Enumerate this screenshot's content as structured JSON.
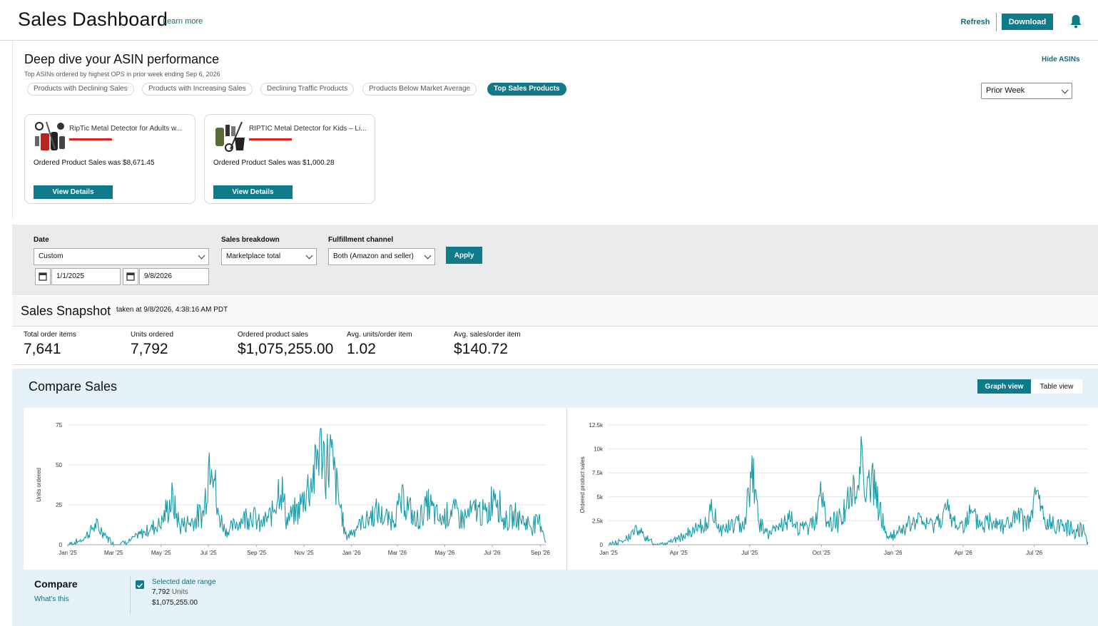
{
  "header": {
    "title": "Sales Dashboard",
    "learn_more": "Learn more",
    "refresh": "Refresh",
    "download": "Download",
    "bell_icon": "bell-icon"
  },
  "asin_panel": {
    "title": "Deep dive your ASIN performance",
    "subtitle": "Top ASINs ordered by highest OPS in prior week ending Sep 6, 2026",
    "hide_asins": "Hide ASINs",
    "tabs": [
      {
        "label": "Products with Declining Sales",
        "active": false
      },
      {
        "label": "Products with Increasing Sales",
        "active": false
      },
      {
        "label": "Declining Traffic Products",
        "active": false
      },
      {
        "label": "Products Below Market Average",
        "active": false
      },
      {
        "label": "Top Sales Products",
        "active": true
      }
    ],
    "period_select": "Prior Week",
    "cards": [
      {
        "name": "RipTic Metal Detector for Adults w...",
        "sales": "Ordered Product Sales was $8,671.45",
        "button": "View Details"
      },
      {
        "name": "RIPTIC Metal Detector for Kids – Li...",
        "sales": "Ordered Product Sales was $1,000.28",
        "button": "View Details"
      }
    ]
  },
  "filters": {
    "date_label": "Date",
    "date_value": "Custom",
    "start_date": "1/1/2025",
    "end_date": "9/8/2026",
    "breakdown_label": "Sales breakdown",
    "breakdown_value": "Marketplace total",
    "channel_label": "Fulfillment channel",
    "channel_value": "Both (Amazon and seller)",
    "apply": "Apply"
  },
  "snapshot": {
    "title": "Sales Snapshot",
    "taken_at": "taken at 9/8/2026, 4:38:16 AM PDT",
    "metrics": [
      {
        "label": "Total order items",
        "value": "7,641"
      },
      {
        "label": "Units ordered",
        "value": "7,792"
      },
      {
        "label": "Ordered product sales",
        "value": "$1,075,255.00"
      },
      {
        "label": "Avg. units/order item",
        "value": "1.02"
      },
      {
        "label": "Avg. sales/order item",
        "value": "$140.72"
      }
    ]
  },
  "compare": {
    "title": "Compare Sales",
    "graph_view": "Graph view",
    "table_view": "Table view",
    "compare_label": "Compare",
    "whats_this": "What's this",
    "range_label": "Selected date range",
    "range_units_value": "7,792",
    "range_units_suffix": "Units",
    "range_sales": "$1,075,255.00"
  },
  "accent_color": "#0f7a8a",
  "series_color": "#1a9ba8",
  "chart_data": [
    {
      "type": "line",
      "title": "",
      "ylabel": "Units ordered",
      "ylim": [
        0,
        75
      ],
      "yticks": [
        0,
        25,
        50,
        75
      ],
      "xticks": [
        "Jan '25",
        "Mar '25",
        "May '25",
        "Jul '25",
        "Sep '25",
        "Nov '25",
        "Jan '26",
        "Mar '26",
        "May '26",
        "Jul '26",
        "Sep '26"
      ],
      "x_range": [
        "2025-01-01",
        "2026-09-08"
      ],
      "approx_points": [
        [
          "2025-01-01",
          0
        ],
        [
          "2025-01-20",
          3
        ],
        [
          "2025-02-05",
          12
        ],
        [
          "2025-02-15",
          8
        ],
        [
          "2025-03-01",
          0
        ],
        [
          "2025-03-20",
          2
        ],
        [
          "2025-04-10",
          8
        ],
        [
          "2025-05-01",
          14
        ],
        [
          "2025-05-15",
          28
        ],
        [
          "2025-05-25",
          12
        ],
        [
          "2025-06-10",
          15
        ],
        [
          "2025-06-25",
          20
        ],
        [
          "2025-07-05",
          70
        ],
        [
          "2025-07-12",
          20
        ],
        [
          "2025-07-25",
          8
        ],
        [
          "2025-08-10",
          15
        ],
        [
          "2025-08-25",
          20
        ],
        [
          "2025-09-05",
          12
        ],
        [
          "2025-09-20",
          18
        ],
        [
          "2025-10-01",
          40
        ],
        [
          "2025-10-10",
          15
        ],
        [
          "2025-10-25",
          22
        ],
        [
          "2025-11-05",
          35
        ],
        [
          "2025-11-15",
          45
        ],
        [
          "2025-11-22",
          70
        ],
        [
          "2025-11-28",
          50
        ],
        [
          "2025-12-05",
          55
        ],
        [
          "2025-12-15",
          30
        ],
        [
          "2025-12-25",
          5
        ],
        [
          "2026-01-10",
          12
        ],
        [
          "2026-02-01",
          20
        ],
        [
          "2026-02-20",
          15
        ],
        [
          "2026-03-10",
          28
        ],
        [
          "2026-03-25",
          14
        ],
        [
          "2026-04-10",
          25
        ],
        [
          "2026-04-25",
          15
        ],
        [
          "2026-05-10",
          22
        ],
        [
          "2026-05-25",
          16
        ],
        [
          "2026-06-10",
          22
        ],
        [
          "2026-06-25",
          18
        ],
        [
          "2026-07-05",
          37
        ],
        [
          "2026-07-15",
          15
        ],
        [
          "2026-08-01",
          18
        ],
        [
          "2026-08-20",
          12
        ],
        [
          "2026-09-01",
          15
        ],
        [
          "2026-09-08",
          2
        ]
      ]
    },
    {
      "type": "line",
      "title": "",
      "ylabel": "Ordered product sales",
      "ylim": [
        0,
        12500
      ],
      "yticks": [
        "0",
        "2.5k",
        "5k",
        "7.5k",
        "10k",
        "12.5k"
      ],
      "xticks": [
        "Jan '25",
        "Apr '25",
        "Jul '25",
        "Oct '25",
        "Jan '26",
        "Apr '26",
        "Jul '26"
      ],
      "x_range": [
        "2025-01-01",
        "2026-09-08"
      ],
      "approx_points": [
        [
          "2025-01-01",
          0
        ],
        [
          "2025-01-20",
          400
        ],
        [
          "2025-02-05",
          1500
        ],
        [
          "2025-02-15",
          1000
        ],
        [
          "2025-03-01",
          0
        ],
        [
          "2025-03-20",
          300
        ],
        [
          "2025-04-10",
          1000
        ],
        [
          "2025-05-01",
          1800
        ],
        [
          "2025-05-15",
          3500
        ],
        [
          "2025-05-25",
          1500
        ],
        [
          "2025-06-10",
          2000
        ],
        [
          "2025-06-25",
          2500
        ],
        [
          "2025-07-05",
          8800
        ],
        [
          "2025-07-12",
          2500
        ],
        [
          "2025-07-25",
          1000
        ],
        [
          "2025-08-10",
          2000
        ],
        [
          "2025-08-25",
          2500
        ],
        [
          "2025-09-05",
          1500
        ],
        [
          "2025-09-20",
          2300
        ],
        [
          "2025-10-01",
          5000
        ],
        [
          "2025-10-10",
          2000
        ],
        [
          "2025-10-25",
          2800
        ],
        [
          "2025-11-05",
          4500
        ],
        [
          "2025-11-15",
          5500
        ],
        [
          "2025-11-22",
          9900
        ],
        [
          "2025-11-28",
          6000
        ],
        [
          "2025-12-05",
          6500
        ],
        [
          "2025-12-15",
          3500
        ],
        [
          "2025-12-25",
          600
        ],
        [
          "2026-01-10",
          1500
        ],
        [
          "2026-02-01",
          2500
        ],
        [
          "2026-02-20",
          2000
        ],
        [
          "2026-03-10",
          3500
        ],
        [
          "2026-03-25",
          1800
        ],
        [
          "2026-04-10",
          3000
        ],
        [
          "2026-04-25",
          2000
        ],
        [
          "2026-05-10",
          2800
        ],
        [
          "2026-05-25",
          2000
        ],
        [
          "2026-06-10",
          2800
        ],
        [
          "2026-06-25",
          2200
        ],
        [
          "2026-07-05",
          5400
        ],
        [
          "2026-07-15",
          2000
        ],
        [
          "2026-08-01",
          2200
        ],
        [
          "2026-08-20",
          1500
        ],
        [
          "2026-09-01",
          1800
        ],
        [
          "2026-09-08",
          200
        ]
      ]
    }
  ]
}
